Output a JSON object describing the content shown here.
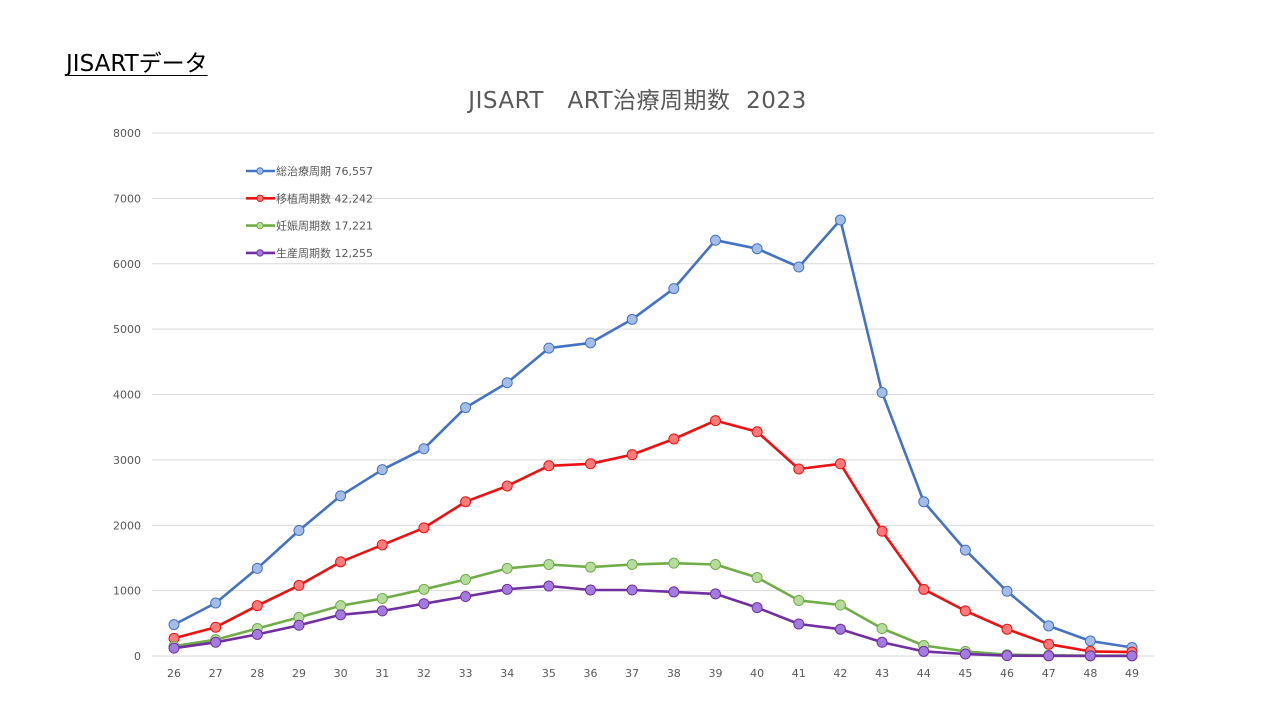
{
  "header": {
    "title": "JISARTデータ"
  },
  "chart_data": {
    "type": "line",
    "title": "JISART　ART治療周期数  2023",
    "xlabel": "",
    "ylabel": "",
    "categories": [
      "26",
      "27",
      "28",
      "29",
      "30",
      "31",
      "32",
      "33",
      "34",
      "35",
      "36",
      "37",
      "38",
      "39",
      "40",
      "41",
      "42",
      "43",
      "44",
      "45",
      "46",
      "47",
      "48",
      "49"
    ],
    "ylim": [
      0,
      8000
    ],
    "yticks": [
      0,
      1000,
      2000,
      3000,
      4000,
      5000,
      6000,
      7000,
      8000
    ],
    "grid": true,
    "legend_position": "top-left",
    "series": [
      {
        "name": "総治療周期 76,557",
        "color": "#4472c4",
        "marker_color": "#a4bce8",
        "values": [
          480,
          810,
          1340,
          1920,
          2450,
          2850,
          3170,
          3800,
          4180,
          4710,
          4790,
          5150,
          5620,
          6360,
          6230,
          5950,
          6670,
          4030,
          2360,
          1620,
          990,
          460,
          230,
          130
        ]
      },
      {
        "name": "移植周期数 42,242",
        "color": "#ee1111",
        "marker_color": "#ff7b7b",
        "values": [
          270,
          440,
          770,
          1080,
          1440,
          1700,
          1960,
          2360,
          2600,
          2910,
          2940,
          3080,
          3320,
          3600,
          3430,
          2860,
          2940,
          1910,
          1020,
          690,
          410,
          180,
          70,
          60
        ]
      },
      {
        "name": "妊娠周期数 17,221",
        "color": "#70ad47",
        "marker_color": "#b5dc9c",
        "values": [
          150,
          250,
          420,
          590,
          770,
          880,
          1020,
          1170,
          1340,
          1400,
          1360,
          1400,
          1420,
          1400,
          1200,
          850,
          780,
          420,
          160,
          70,
          20,
          10,
          5,
          5
        ]
      },
      {
        "name": "生産周期数 12,255",
        "color": "#7030a0",
        "marker_color": "#a37be0",
        "values": [
          120,
          210,
          330,
          470,
          630,
          690,
          800,
          910,
          1020,
          1070,
          1010,
          1010,
          980,
          950,
          740,
          490,
          410,
          210,
          70,
          30,
          5,
          3,
          2,
          2
        ]
      }
    ]
  }
}
